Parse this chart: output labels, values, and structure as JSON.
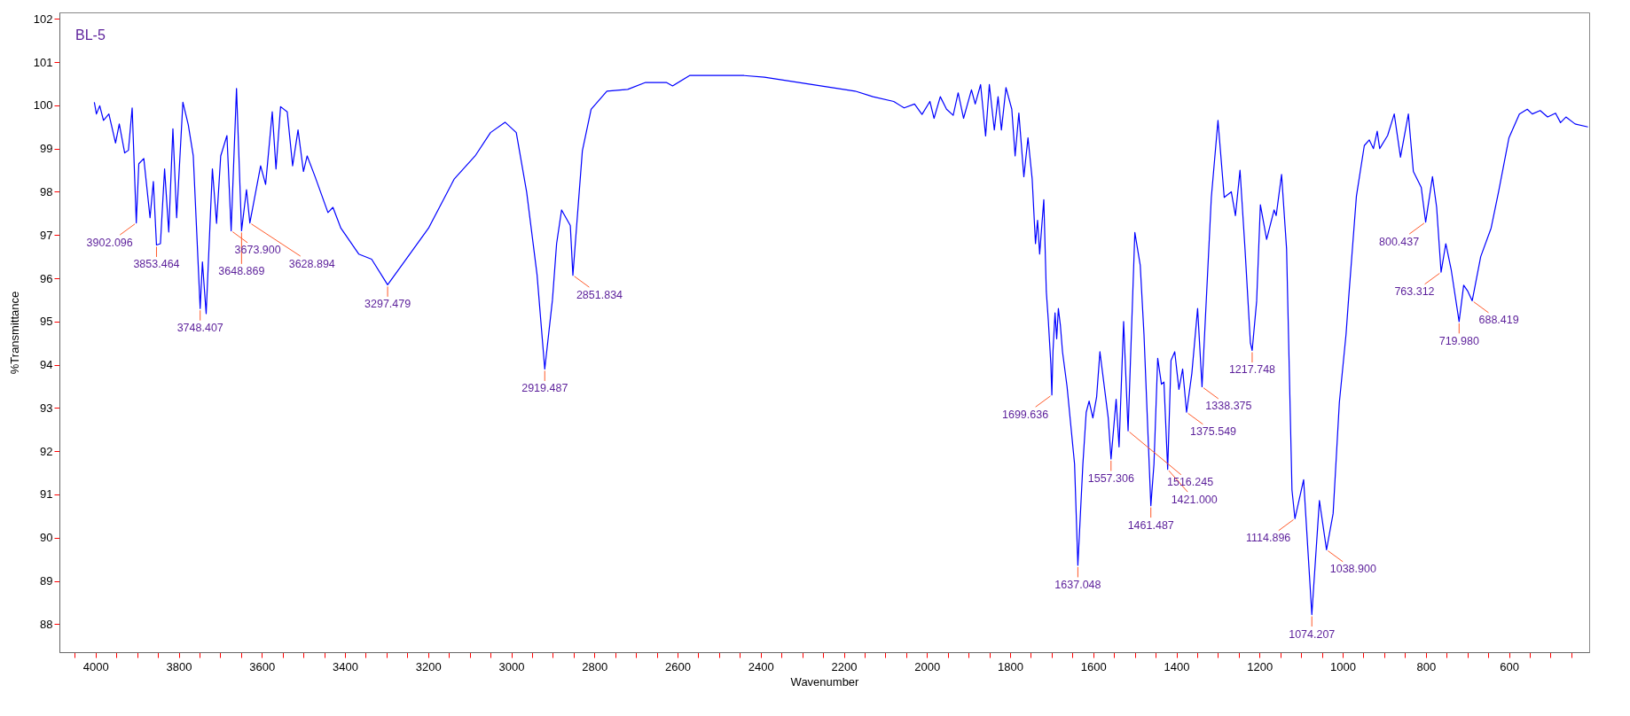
{
  "chart_data": {
    "type": "line",
    "title": "BL-5",
    "xlabel": "Wavenumber",
    "ylabel": "%Transmittance",
    "xlim": [
      4087,
      407
    ],
    "ylim": [
      87.35,
      102.15
    ],
    "xticks": [
      {
        "value": 4050,
        "label": null
      },
      4000,
      {
        "value": 3950,
        "label": null
      },
      {
        "value": 3900,
        "label": null
      },
      {
        "value": 3850,
        "label": null
      },
      3800,
      {
        "value": 3750,
        "label": null
      },
      {
        "value": 3700,
        "label": null
      },
      {
        "value": 3650,
        "label": null
      },
      3600,
      {
        "value": 3550,
        "label": null
      },
      {
        "value": 3500,
        "label": null
      },
      {
        "value": 3450,
        "label": null
      },
      3400,
      {
        "value": 3350,
        "label": null
      },
      {
        "value": 3300,
        "label": null
      },
      {
        "value": 3250,
        "label": null
      },
      3200,
      {
        "value": 3150,
        "label": null
      },
      {
        "value": 3100,
        "label": null
      },
      {
        "value": 3050,
        "label": null
      },
      3000,
      {
        "value": 2950,
        "label": null
      },
      {
        "value": 2900,
        "label": null
      },
      {
        "value": 2850,
        "label": null
      },
      2800,
      {
        "value": 2750,
        "label": null
      },
      {
        "value": 2700,
        "label": null
      },
      {
        "value": 2650,
        "label": null
      },
      2600,
      {
        "value": 2550,
        "label": null
      },
      {
        "value": 2500,
        "label": null
      },
      {
        "value": 2450,
        "label": null
      },
      2400,
      {
        "value": 2350,
        "label": null
      },
      {
        "value": 2300,
        "label": null
      },
      {
        "value": 2250,
        "label": null
      },
      2200,
      {
        "value": 2150,
        "label": null
      },
      {
        "value": 2100,
        "label": null
      },
      {
        "value": 2050,
        "label": null
      },
      2000,
      {
        "value": 1950,
        "label": null
      },
      {
        "value": 1900,
        "label": null
      },
      {
        "value": 1850,
        "label": null
      },
      1800,
      {
        "value": 1750,
        "label": null
      },
      {
        "value": 1700,
        "label": null
      },
      {
        "value": 1650,
        "label": null
      },
      1600,
      {
        "value": 1550,
        "label": null
      },
      {
        "value": 1500,
        "label": null
      },
      {
        "value": 1450,
        "label": null
      },
      1400,
      {
        "value": 1350,
        "label": null
      },
      {
        "value": 1300,
        "label": null
      },
      {
        "value": 1250,
        "label": null
      },
      1200,
      {
        "value": 1150,
        "label": null
      },
      {
        "value": 1100,
        "label": null
      },
      {
        "value": 1050,
        "label": null
      },
      1000,
      {
        "value": 950,
        "label": null
      },
      {
        "value": 900,
        "label": null
      },
      {
        "value": 850,
        "label": null
      },
      800,
      {
        "value": 750,
        "label": null
      },
      {
        "value": 700,
        "label": null
      },
      {
        "value": 650,
        "label": null
      },
      600,
      {
        "value": 550,
        "label": null
      },
      {
        "value": 500,
        "label": null
      },
      {
        "value": 450,
        "label": null
      }
    ],
    "yticks": [
      88,
      89,
      90,
      91,
      92,
      93,
      94,
      95,
      96,
      97,
      98,
      99,
      100,
      101,
      102
    ],
    "x": [
      4003,
      3998,
      3990,
      3981,
      3968,
      3952,
      3943,
      3930,
      3921,
      3912,
      3902.096,
      3896,
      3884,
      3869,
      3861,
      3853.464,
      3844,
      3834,
      3824,
      3814,
      3805,
      3790,
      3777,
      3765,
      3748.407,
      3743,
      3734,
      3719,
      3709,
      3699,
      3684,
      3673.9,
      3661,
      3648.869,
      3637,
      3628.894,
      3603,
      3591,
      3575,
      3566,
      3555,
      3539,
      3526,
      3513,
      3500,
      3491,
      3472,
      3441,
      3429,
      3410,
      3367,
      3336,
      3297.479,
      3262,
      3199,
      3137,
      3087,
      3050,
      3015,
      2988,
      2963,
      2938,
      2919.487,
      2901,
      2891,
      2879,
      2858,
      2851.834,
      2829,
      2808,
      2770,
      2720,
      2677,
      2627,
      2612,
      2571,
      2440,
      2391,
      2173,
      2130,
      2080,
      2055,
      2030,
      2012,
      1993,
      1983,
      1968,
      1953,
      1937,
      1925,
      1912,
      1893,
      1884,
      1871,
      1859,
      1850,
      1838,
      1829,
      1821,
      1810,
      1796,
      1788,
      1779,
      1767,
      1757,
      1747,
      1739,
      1734,
      1729,
      1719,
      1713,
      1708,
      1702,
      1699.636,
      1697,
      1692,
      1688,
      1684,
      1679,
      1674,
      1663,
      1645,
      1637.048,
      1625,
      1617,
      1610,
      1601,
      1592,
      1584,
      1564,
      1557.306,
      1545,
      1538,
      1527,
      1516.245,
      1500,
      1487,
      1478,
      1461.487,
      1454,
      1445,
      1436,
      1430,
      1421,
      1413,
      1404,
      1394,
      1385,
      1375.549,
      1363,
      1349,
      1338.375,
      1316,
      1300,
      1285,
      1268,
      1258,
      1247,
      1235,
      1222,
      1217.748,
      1207,
      1198,
      1183,
      1165,
      1160,
      1147,
      1135,
      1122,
      1114.896,
      1094,
      1074.207,
      1056,
      1038.9,
      1023,
      1008,
      992,
      986,
      967,
      948,
      936,
      926,
      917,
      911,
      892,
      876,
      861,
      842,
      830,
      811,
      800.437,
      784,
      774,
      763.312,
      752,
      739,
      719.98,
      709,
      699,
      688.419,
      668,
      643,
      625,
      600,
      575,
      556,
      544,
      525,
      507,
      488,
      476,
      463,
      441,
      410
    ],
    "series": [
      {
        "color": "#0000ff",
        "values": [
          100.07,
          99.8,
          99.99,
          99.65,
          99.8,
          99.13,
          99.57,
          98.9,
          98.96,
          99.94,
          97.28,
          98.65,
          98.77,
          97.4,
          98.24,
          96.77,
          96.8,
          98.53,
          97.07,
          99.46,
          97.4,
          100.07,
          99.55,
          98.83,
          95.3,
          96.38,
          95.18,
          98.53,
          97.27,
          98.83,
          99.3,
          97.1,
          100.39,
          97.1,
          98.05,
          97.28,
          98.6,
          98.17,
          99.85,
          98.53,
          99.97,
          99.85,
          98.6,
          99.43,
          98.47,
          98.83,
          98.35,
          97.52,
          97.64,
          97.16,
          96.56,
          96.44,
          95.85,
          96.32,
          97.16,
          98.3,
          98.83,
          99.37,
          99.61,
          99.37,
          97.99,
          96.08,
          93.9,
          95.5,
          96.8,
          97.58,
          97.22,
          96.07,
          98.95,
          99.91,
          100.33,
          100.37,
          100.53,
          100.53,
          100.45,
          100.69,
          100.69,
          100.65,
          100.33,
          100.2,
          100.09,
          99.94,
          100.03,
          99.79,
          100.09,
          99.7,
          100.2,
          99.91,
          99.77,
          100.29,
          99.7,
          100.36,
          100.03,
          100.48,
          99.29,
          100.48,
          99.43,
          100.2,
          99.43,
          100.41,
          99.91,
          98.83,
          99.82,
          98.35,
          99.25,
          98.3,
          96.8,
          97.34,
          96.56,
          97.82,
          95.7,
          95.0,
          94.0,
          93.3,
          94.3,
          95.2,
          94.6,
          95.3,
          94.9,
          94.3,
          93.49,
          91.7,
          89.36,
          91.7,
          92.9,
          93.16,
          92.77,
          93.25,
          94.3,
          92.77,
          91.82,
          93.2,
          92.1,
          95.0,
          92.47,
          97.06,
          96.3,
          94.7,
          90.74,
          91.7,
          94.15,
          93.55,
          93.6,
          91.58,
          94.1,
          94.3,
          93.43,
          93.9,
          92.9,
          93.79,
          95.3,
          93.49,
          97.87,
          99.65,
          97.87,
          98.0,
          97.45,
          98.5,
          96.68,
          94.5,
          94.33,
          95.47,
          97.7,
          96.9,
          97.58,
          97.45,
          98.4,
          96.68,
          91.1,
          90.44,
          91.34,
          88.22,
          90.86,
          89.72,
          90.56,
          93.13,
          94.7,
          95.5,
          97.9,
          99.07,
          99.2,
          99.0,
          99.4,
          99.0,
          99.3,
          99.8,
          98.8,
          99.8,
          98.47,
          98.1,
          97.3,
          98.35,
          97.64,
          96.14,
          96.8,
          96.2,
          95.0,
          95.84,
          95.7,
          95.48,
          96.5,
          97.16,
          98.0,
          99.25,
          99.8,
          99.91,
          99.8,
          99.88,
          99.73,
          99.82,
          99.6,
          99.73,
          99.57,
          99.5
        ]
      }
    ],
    "annotations": [
      {
        "text": "3902.096",
        "x": 3902.096,
        "y": 97.28
      },
      {
        "text": "3853.464",
        "x": 3853.464,
        "y": 96.77
      },
      {
        "text": "3748.407",
        "x": 3748.407,
        "y": 95.3
      },
      {
        "text": "3673.900",
        "x": 3673.9,
        "y": 97.1
      },
      {
        "text": "3648.869",
        "x": 3648.869,
        "y": 97.1
      },
      {
        "text": "3628.894",
        "x": 3628.894,
        "y": 97.28
      },
      {
        "text": "3297.479",
        "x": 3297.479,
        "y": 95.85
      },
      {
        "text": "2919.487",
        "x": 2919.487,
        "y": 93.9
      },
      {
        "text": "2851.834",
        "x": 2851.834,
        "y": 96.07
      },
      {
        "text": "1699.636",
        "x": 1699.636,
        "y": 93.3
      },
      {
        "text": "1637.048",
        "x": 1637.048,
        "y": 89.36
      },
      {
        "text": "1557.306",
        "x": 1557.306,
        "y": 91.82
      },
      {
        "text": "1516.245",
        "x": 1516.245,
        "y": 92.47
      },
      {
        "text": "1461.487",
        "x": 1461.487,
        "y": 90.74
      },
      {
        "text": "1421.000",
        "x": 1421,
        "y": 91.58
      },
      {
        "text": "1375.549",
        "x": 1375.549,
        "y": 92.9
      },
      {
        "text": "1338.375",
        "x": 1338.375,
        "y": 93.49
      },
      {
        "text": "1217.748",
        "x": 1217.748,
        "y": 94.33
      },
      {
        "text": "1114.896",
        "x": 1114.896,
        "y": 90.44
      },
      {
        "text": "1074.207",
        "x": 1074.207,
        "y": 88.22
      },
      {
        "text": "1038.900",
        "x": 1038.9,
        "y": 89.72
      },
      {
        "text": "800.437",
        "x": 800.437,
        "y": 97.3
      },
      {
        "text": "763.312",
        "x": 763.312,
        "y": 96.14
      },
      {
        "text": "719.980",
        "x": 719.98,
        "y": 95.0
      },
      {
        "text": "688.419",
        "x": 688.419,
        "y": 95.48
      }
    ]
  }
}
